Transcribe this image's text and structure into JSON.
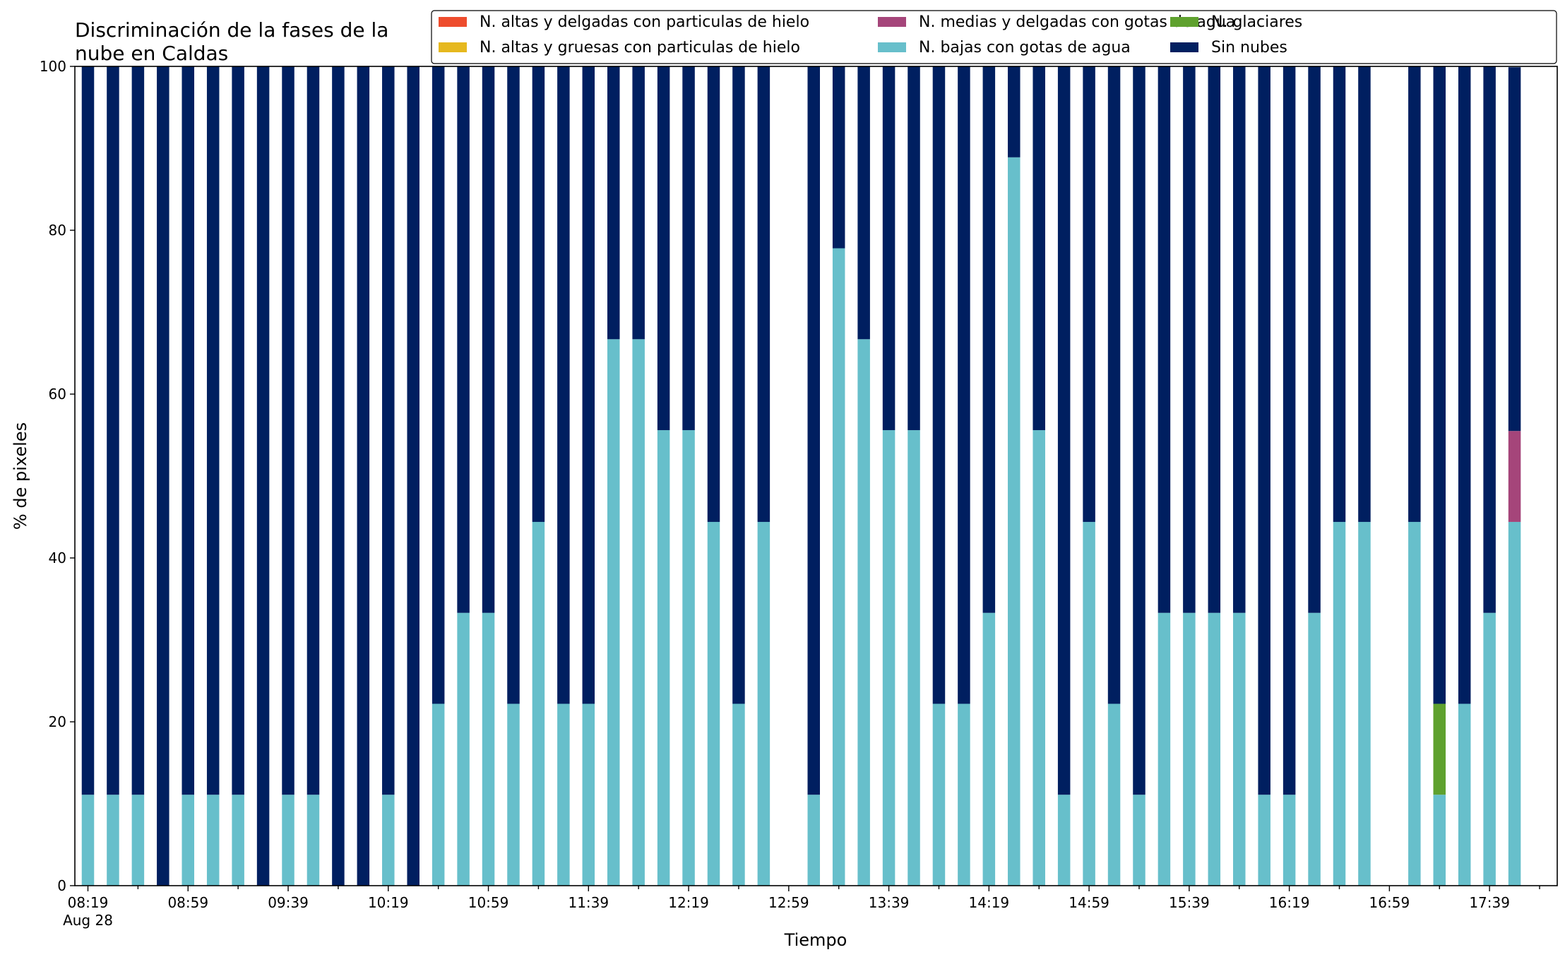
{
  "chart_data": {
    "type": "bar",
    "stacked": true,
    "title": "Discriminación de la fases de la nube en Caldas",
    "title_lines": [
      "Discriminación de la fases de la",
      "nube en Caldas"
    ],
    "xlabel": "Tiempo",
    "ylabel": "% de pixeles",
    "ylim": [
      0,
      100
    ],
    "yticks": [
      0,
      20,
      40,
      60,
      80,
      100
    ],
    "grid": false,
    "legend_position": "top-right",
    "x_start": "08:19",
    "x_step_minutes": 10,
    "x_tick_labels": [
      "08:19",
      "08:59",
      "09:39",
      "10:19",
      "10:59",
      "11:39",
      "12:19",
      "12:59",
      "13:39",
      "14:19",
      "14:59",
      "15:39",
      "16:19",
      "16:59",
      "17:39"
    ],
    "x_tick_sublabel": "Aug 28",
    "categories": [
      "08:19",
      "08:29",
      "08:39",
      "08:49",
      "08:59",
      "09:09",
      "09:19",
      "09:29",
      "09:39",
      "09:49",
      "09:59",
      "10:09",
      "10:19",
      "10:29",
      "10:39",
      "10:49",
      "10:59",
      "11:09",
      "11:19",
      "11:29",
      "11:39",
      "11:49",
      "11:59",
      "12:09",
      "12:19",
      "12:29",
      "12:39",
      "12:49",
      "12:59",
      "13:09",
      "13:19",
      "13:29",
      "13:39",
      "13:49",
      "13:59",
      "14:09",
      "14:19",
      "14:29",
      "14:39",
      "14:49",
      "14:59",
      "15:09",
      "15:19",
      "15:29",
      "15:39",
      "15:49",
      "15:59",
      "16:09",
      "16:19",
      "16:29",
      "16:39",
      "16:49",
      "16:59",
      "17:09",
      "17:19",
      "17:29",
      "17:39",
      "17:49"
    ],
    "series": [
      {
        "name": "N. altas y delgadas con particulas de hielo",
        "color": "#ee4c2d",
        "values": [
          0,
          0,
          0,
          0,
          0,
          0,
          0,
          0,
          0,
          0,
          0,
          0,
          0,
          0,
          0,
          0,
          0,
          0,
          0,
          0,
          0,
          0,
          0,
          0,
          0,
          0,
          0,
          0,
          null,
          0,
          0,
          0,
          0,
          0,
          0,
          0,
          0,
          0,
          0,
          0,
          0,
          0,
          0,
          0,
          0,
          0,
          0,
          0,
          0,
          0,
          0,
          0,
          null,
          0,
          0,
          0,
          0,
          0
        ]
      },
      {
        "name": "N. altas y gruesas con particulas de hielo",
        "color": "#e6b81e",
        "values": [
          0,
          0,
          0,
          0,
          0,
          0,
          0,
          0,
          0,
          0,
          0,
          0,
          0,
          0,
          0,
          0,
          0,
          0,
          0,
          0,
          0,
          0,
          0,
          0,
          0,
          0,
          0,
          0,
          null,
          0,
          0,
          0,
          0,
          0,
          0,
          0,
          0,
          0,
          0,
          0,
          0,
          0,
          0,
          0,
          0,
          0,
          0,
          0,
          0,
          0,
          0,
          0,
          null,
          0,
          0,
          0,
          0,
          0
        ]
      },
      {
        "name": "N. bajas con gotas de agua",
        "color": "#67bfcb",
        "values": [
          11.1,
          11.1,
          11.1,
          0,
          11.1,
          11.1,
          11.1,
          0,
          11.1,
          11.1,
          0,
          0,
          11.1,
          0,
          22.2,
          33.3,
          33.3,
          22.2,
          44.4,
          22.2,
          22.2,
          66.7,
          66.7,
          55.6,
          55.6,
          44.4,
          22.2,
          44.4,
          null,
          11.1,
          77.8,
          66.7,
          55.6,
          55.6,
          22.2,
          22.2,
          33.3,
          88.9,
          55.6,
          11.1,
          44.4,
          22.2,
          11.1,
          33.3,
          33.3,
          33.3,
          33.3,
          11.1,
          11.1,
          33.3,
          44.4,
          44.4,
          null,
          44.4,
          11.1,
          22.2,
          33.3,
          44.4
        ]
      },
      {
        "name": "N. glaciares",
        "color": "#5fa12e",
        "values": [
          0,
          0,
          0,
          0,
          0,
          0,
          0,
          0,
          0,
          0,
          0,
          0,
          0,
          0,
          0,
          0,
          0,
          0,
          0,
          0,
          0,
          0,
          0,
          0,
          0,
          0,
          0,
          0,
          null,
          0,
          0,
          0,
          0,
          0,
          0,
          0,
          0,
          0,
          0,
          0,
          0,
          0,
          0,
          0,
          0,
          0,
          0,
          0,
          0,
          0,
          0,
          0,
          null,
          0,
          11.1,
          0,
          0,
          0
        ]
      },
      {
        "name": "N. medias y delgadas con gotas de agua",
        "color": "#a5457a",
        "values": [
          0,
          0,
          0,
          0,
          0,
          0,
          0,
          0,
          0,
          0,
          0,
          0,
          0,
          0,
          0,
          0,
          0,
          0,
          0,
          0,
          0,
          0,
          0,
          0,
          0,
          0,
          0,
          0,
          null,
          0,
          0,
          0,
          0,
          0,
          0,
          0,
          0,
          0,
          0,
          0,
          0,
          0,
          0,
          0,
          0,
          0,
          0,
          0,
          0,
          0,
          0,
          0,
          null,
          0,
          0,
          0,
          0,
          11.1
        ]
      },
      {
        "name": "Sin nubes",
        "color": "#001f60",
        "values": [
          88.9,
          88.9,
          88.9,
          100,
          88.9,
          88.9,
          88.9,
          100,
          88.9,
          88.9,
          100,
          100,
          88.9,
          100,
          77.8,
          66.7,
          66.7,
          77.8,
          55.6,
          77.8,
          77.8,
          33.3,
          33.3,
          44.4,
          44.4,
          55.6,
          77.8,
          55.6,
          null,
          88.9,
          22.2,
          33.3,
          44.4,
          44.4,
          77.8,
          77.8,
          66.7,
          11.1,
          44.4,
          88.9,
          55.6,
          77.8,
          88.9,
          66.7,
          66.7,
          66.7,
          66.7,
          88.9,
          88.9,
          66.7,
          55.6,
          55.6,
          null,
          55.6,
          77.8,
          77.8,
          66.7,
          44.4
        ]
      }
    ],
    "legend_order": [
      0,
      1,
      4,
      2,
      3,
      5
    ]
  }
}
